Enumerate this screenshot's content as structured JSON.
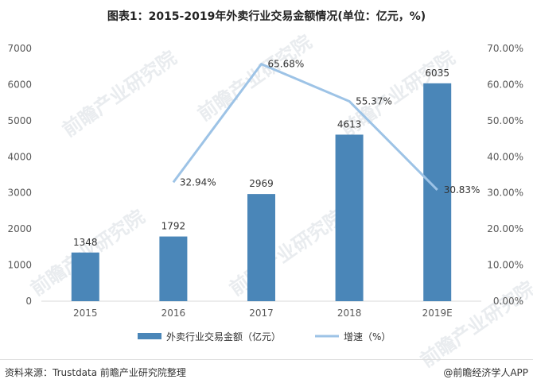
{
  "title": "图表1：2015-2019年外卖行业交易金额情况(单位：亿元，%)",
  "chart_data": {
    "type": "bar",
    "categories": [
      "2015",
      "2016",
      "2017",
      "2018",
      "2019E"
    ],
    "series": [
      {
        "name": "外卖行业交易金额（亿元）",
        "type": "bar",
        "axis": "left",
        "values": [
          1348,
          1792,
          2969,
          4613,
          6035
        ],
        "labels": [
          "1348",
          "1792",
          "2969",
          "4613",
          "6035"
        ]
      },
      {
        "name": "增速（%）",
        "type": "line",
        "axis": "right",
        "values": [
          null,
          32.94,
          65.68,
          55.37,
          30.83
        ],
        "labels": [
          "",
          "32.94%",
          "65.68%",
          "55.37%",
          "30.83%"
        ]
      }
    ],
    "y_left": {
      "min": 0,
      "max": 7000,
      "ticks": [
        "0",
        "1000",
        "2000",
        "3000",
        "4000",
        "5000",
        "6000",
        "7000"
      ]
    },
    "y_right": {
      "min": 0,
      "max": 70,
      "ticks": [
        "0.00%",
        "10.00%",
        "20.00%",
        "30.00%",
        "40.00%",
        "50.00%",
        "60.00%",
        "70.00%"
      ]
    },
    "legend_position": "bottom",
    "grid": false,
    "colors": {
      "bar": "#4a86b8",
      "line": "#9dc3e6"
    }
  },
  "watermark": "前瞻产业研究院",
  "footer": {
    "source": "资料来源：Trustdata 前瞻产业研究院整理",
    "credit": "@前瞻经济学人APP"
  }
}
